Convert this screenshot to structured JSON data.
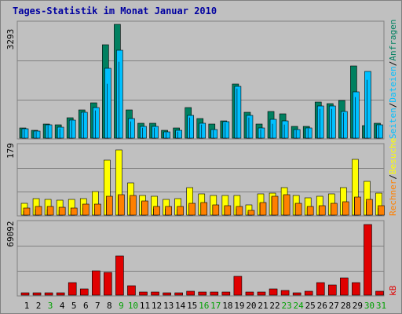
{
  "title": "Tages-Statistik im Monat Januar 2010",
  "colors": {
    "background": "#C0C0C0",
    "panel": "#C0C0C0",
    "grid": "#808080",
    "anfragen": "#008060",
    "dateien": "#00C0FF",
    "seiten": "#FFFF00",
    "besuche": "#FF8000",
    "rechner": "#FF8000",
    "kb": "#E00000",
    "weekday": "#000000",
    "weekend": "#00A000",
    "title": "#0000A0"
  },
  "panel_labels": {
    "top": [
      "Anfragen",
      "Dateien",
      "Seiten"
    ],
    "middle": [
      "Besuche",
      "Rechner"
    ],
    "bottom": [
      "kB"
    ]
  },
  "side_separator": "/",
  "chart_data": [
    {
      "type": "bar",
      "name": "hits-files-pages",
      "categories": [
        "1",
        "2",
        "3",
        "4",
        "5",
        "6",
        "7",
        "8",
        "9",
        "10",
        "11",
        "12",
        "13",
        "14",
        "15",
        "16",
        "17",
        "18",
        "19",
        "20",
        "21",
        "22",
        "23",
        "24",
        "25",
        "26",
        "27",
        "28",
        "29",
        "30",
        "31"
      ],
      "ymax_label": "3293",
      "ylim": [
        0,
        3293
      ],
      "series": [
        {
          "name": "Anfragen",
          "values": [
            300,
            230,
            410,
            380,
            590,
            820,
            1030,
            2700,
            3293,
            820,
            430,
            430,
            220,
            290,
            880,
            570,
            400,
            510,
            1570,
            750,
            420,
            770,
            700,
            340,
            330,
            1050,
            1000,
            1080,
            2100,
            370,
            430
          ]
        },
        {
          "name": "Dateien",
          "values": [
            270,
            210,
            390,
            320,
            520,
            760,
            880,
            2020,
            2550,
            560,
            330,
            340,
            180,
            220,
            650,
            430,
            260,
            480,
            1500,
            660,
            300,
            540,
            490,
            260,
            300,
            920,
            920,
            780,
            1330,
            1930,
            390
          ]
        },
        {
          "name": "Seiten",
          "values": [
            240,
            190,
            360,
            270,
            490,
            720,
            800,
            1560,
            2210,
            480,
            300,
            300,
            150,
            190,
            580,
            380,
            220,
            430,
            1430,
            600,
            260,
            420,
            380,
            230,
            270,
            850,
            850,
            720,
            1190,
            1680,
            360
          ]
        }
      ]
    },
    {
      "type": "bar",
      "name": "visits-sites",
      "categories": [
        "1",
        "2",
        "3",
        "4",
        "5",
        "6",
        "7",
        "8",
        "9",
        "10",
        "11",
        "12",
        "13",
        "14",
        "15",
        "16",
        "17",
        "18",
        "19",
        "20",
        "21",
        "22",
        "23",
        "24",
        "25",
        "26",
        "27",
        "28",
        "29",
        "30",
        "31"
      ],
      "ymax_label": "179",
      "ylim": [
        0,
        179
      ],
      "series": [
        {
          "name": "Seiten",
          "values": [
            30,
            43,
            41,
            40,
            41,
            43,
            62,
            145,
            171,
            84,
            52,
            49,
            42,
            43,
            72,
            56,
            52,
            51,
            51,
            26,
            55,
            58,
            72,
            51,
            46,
            50,
            56,
            71,
            146,
            88,
            58
          ]
        },
        {
          "name": "Besuche",
          "values": [
            18,
            22,
            22,
            20,
            18,
            28,
            28,
            50,
            53,
            52,
            38,
            22,
            22,
            22,
            30,
            33,
            27,
            25,
            22,
            12,
            33,
            50,
            54,
            30,
            22,
            24,
            30,
            34,
            48,
            41,
            24
          ]
        },
        {
          "name": "Rechner",
          "values": [
            10,
            14,
            14,
            12,
            10,
            18,
            16,
            40,
            50,
            46,
            34,
            16,
            16,
            15,
            26,
            30,
            22,
            20,
            16,
            8,
            30,
            48,
            52,
            28,
            18,
            20,
            26,
            30,
            45,
            34,
            18
          ]
        }
      ]
    },
    {
      "type": "bar",
      "name": "kbytes",
      "categories": [
        "1",
        "2",
        "3",
        "4",
        "5",
        "6",
        "7",
        "8",
        "9",
        "10",
        "11",
        "12",
        "13",
        "14",
        "15",
        "16",
        "17",
        "18",
        "19",
        "20",
        "21",
        "22",
        "23",
        "24",
        "25",
        "26",
        "27",
        "28",
        "29",
        "30",
        "31"
      ],
      "ymax_label": "69092",
      "ylim": [
        0,
        69092
      ],
      "series": [
        {
          "name": "kB",
          "values": [
            1900,
            1900,
            2300,
            2600,
            12500,
            5700,
            23500,
            21800,
            38200,
            9100,
            3000,
            3000,
            2000,
            2300,
            4000,
            2900,
            3000,
            3300,
            18200,
            3000,
            3000,
            5800,
            4200,
            2300,
            3800,
            12000,
            10000,
            16700,
            12500,
            68200,
            4000
          ]
        }
      ]
    }
  ],
  "weekend_days": [
    "3",
    "9",
    "10",
    "16",
    "17",
    "23",
    "24",
    "30",
    "31"
  ]
}
